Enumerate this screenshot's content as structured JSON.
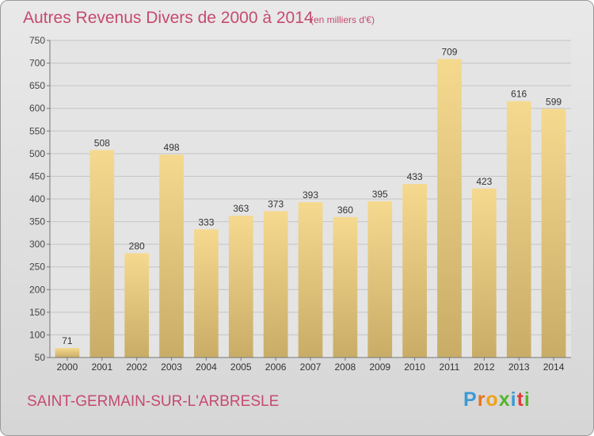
{
  "chart_data": {
    "type": "bar",
    "title": "Autres Revenus Divers de 2000 à 2014",
    "subtitle": "(en milliers d'€)",
    "categories": [
      "2000",
      "2001",
      "2002",
      "2003",
      "2004",
      "2005",
      "2006",
      "2007",
      "2008",
      "2009",
      "2010",
      "2011",
      "2012",
      "2013",
      "2014"
    ],
    "values": [
      71,
      508,
      280,
      498,
      333,
      363,
      373,
      393,
      360,
      395,
      433,
      709,
      423,
      616,
      599
    ],
    "ylim": [
      50,
      750
    ],
    "yticks": [
      50,
      100,
      150,
      200,
      250,
      300,
      350,
      400,
      450,
      500,
      550,
      600,
      650,
      700,
      750
    ],
    "grid": true,
    "bar_color": "#e7c87a"
  },
  "footer": {
    "place": "SAINT-GERMAIN-SUR-L'ARBRESLE",
    "logo_letters": [
      {
        "ch": "P",
        "color": "#3b9ad6"
      },
      {
        "ch": "r",
        "color": "#e8731f"
      },
      {
        "ch": "o",
        "color": "#f0a21a"
      },
      {
        "ch": "x",
        "color": "#55b52f"
      },
      {
        "ch": "i",
        "color": "#3b9ad6"
      },
      {
        "ch": "t",
        "color": "#e23c3c"
      },
      {
        "ch": "i",
        "color": "#55b52f"
      }
    ]
  }
}
